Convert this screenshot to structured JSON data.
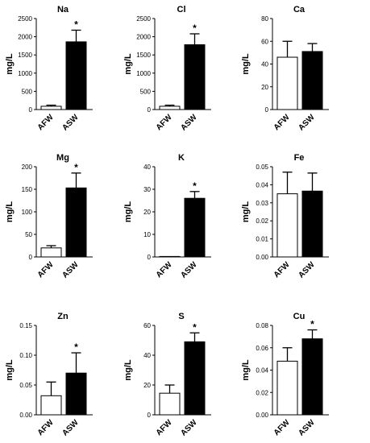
{
  "chart_data": [
    {
      "type": "bar",
      "title": "Na",
      "ylabel": "mg/L",
      "categories": [
        "AFW",
        "ASW"
      ],
      "values": [
        90,
        1860
      ],
      "errors": [
        30,
        320
      ],
      "fills": [
        "#ffffff",
        "#000000"
      ],
      "significance": [
        "",
        "*"
      ],
      "ylim": [
        0,
        2500
      ],
      "yticks": [
        0,
        500,
        1000,
        1500,
        2000,
        2500
      ],
      "ytick_labels": [
        "0",
        "500",
        "1000",
        "1500",
        "2000",
        "2500"
      ]
    },
    {
      "type": "bar",
      "title": "Cl",
      "ylabel": "mg/L",
      "categories": [
        "AFW",
        "ASW"
      ],
      "values": [
        90,
        1780
      ],
      "errors": [
        30,
        300
      ],
      "fills": [
        "#ffffff",
        "#000000"
      ],
      "significance": [
        "",
        "*"
      ],
      "ylim": [
        0,
        2500
      ],
      "yticks": [
        0,
        500,
        1000,
        1500,
        2000,
        2500
      ],
      "ytick_labels": [
        "0",
        "500",
        "1000",
        "1500",
        "2000",
        "2500"
      ]
    },
    {
      "type": "bar",
      "title": "Ca",
      "ylabel": "mg/L",
      "categories": [
        "AFW",
        "ASW"
      ],
      "values": [
        46,
        51
      ],
      "errors": [
        14,
        7
      ],
      "fills": [
        "#ffffff",
        "#000000"
      ],
      "significance": [
        "",
        ""
      ],
      "ylim": [
        0,
        80
      ],
      "yticks": [
        0,
        20,
        40,
        60,
        80
      ],
      "ytick_labels": [
        "0",
        "20",
        "40",
        "60",
        "80"
      ]
    },
    {
      "type": "bar",
      "title": "Mg",
      "ylabel": "mg/L",
      "categories": [
        "AFW",
        "ASW"
      ],
      "values": [
        20,
        153
      ],
      "errors": [
        5,
        33
      ],
      "fills": [
        "#ffffff",
        "#000000"
      ],
      "significance": [
        "",
        "*"
      ],
      "ylim": [
        0,
        200
      ],
      "yticks": [
        0,
        50,
        100,
        150,
        200
      ],
      "ytick_labels": [
        "0",
        "50",
        "100",
        "150",
        "200"
      ]
    },
    {
      "type": "bar",
      "title": "K",
      "ylabel": "mg/L",
      "categories": [
        "AFW",
        "ASW"
      ],
      "values": [
        0.2,
        26
      ],
      "errors": [
        0,
        3
      ],
      "fills": [
        "#ffffff",
        "#000000"
      ],
      "significance": [
        "",
        "*"
      ],
      "ylim": [
        0,
        40
      ],
      "yticks": [
        0,
        10,
        20,
        30,
        40
      ],
      "ytick_labels": [
        "0",
        "10",
        "20",
        "30",
        "40"
      ]
    },
    {
      "type": "bar",
      "title": "Fe",
      "ylabel": "mg/L",
      "categories": [
        "AFW",
        "ASW"
      ],
      "values": [
        0.035,
        0.0365
      ],
      "errors": [
        0.012,
        0.01
      ],
      "fills": [
        "#ffffff",
        "#000000"
      ],
      "significance": [
        "",
        ""
      ],
      "ylim": [
        0,
        0.05
      ],
      "yticks": [
        0,
        0.01,
        0.02,
        0.03,
        0.04,
        0.05
      ],
      "ytick_labels": [
        "0.00",
        "0.01",
        "0.02",
        "0.03",
        "0.04",
        "0.05"
      ]
    },
    {
      "type": "bar",
      "title": "Zn",
      "ylabel": "mg/L",
      "categories": [
        "AFW",
        "ASW"
      ],
      "values": [
        0.032,
        0.07
      ],
      "errors": [
        0.023,
        0.034
      ],
      "fills": [
        "#ffffff",
        "#000000"
      ],
      "significance": [
        "",
        "*"
      ],
      "ylim": [
        0,
        0.15
      ],
      "yticks": [
        0,
        0.05,
        0.1,
        0.15
      ],
      "ytick_labels": [
        "0.00",
        "0.05",
        "0.10",
        "0.15"
      ]
    },
    {
      "type": "bar",
      "title": "S",
      "ylabel": "mg/L",
      "categories": [
        "AFW",
        "ASW"
      ],
      "values": [
        14.5,
        49
      ],
      "errors": [
        5.5,
        6
      ],
      "fills": [
        "#ffffff",
        "#000000"
      ],
      "significance": [
        "",
        "*"
      ],
      "ylim": [
        0,
        60
      ],
      "yticks": [
        0,
        20,
        40,
        60
      ],
      "ytick_labels": [
        "0",
        "20",
        "40",
        "60"
      ]
    },
    {
      "type": "bar",
      "title": "Cu",
      "ylabel": "mg/L",
      "categories": [
        "AFW",
        "ASW"
      ],
      "values": [
        0.048,
        0.068
      ],
      "errors": [
        0.012,
        0.008
      ],
      "fills": [
        "#ffffff",
        "#000000"
      ],
      "significance": [
        "",
        "*"
      ],
      "ylim": [
        0,
        0.08
      ],
      "yticks": [
        0,
        0.02,
        0.04,
        0.06,
        0.08
      ],
      "ytick_labels": [
        "0.00",
        "0.02",
        "0.04",
        "0.06",
        "0.08"
      ]
    }
  ]
}
